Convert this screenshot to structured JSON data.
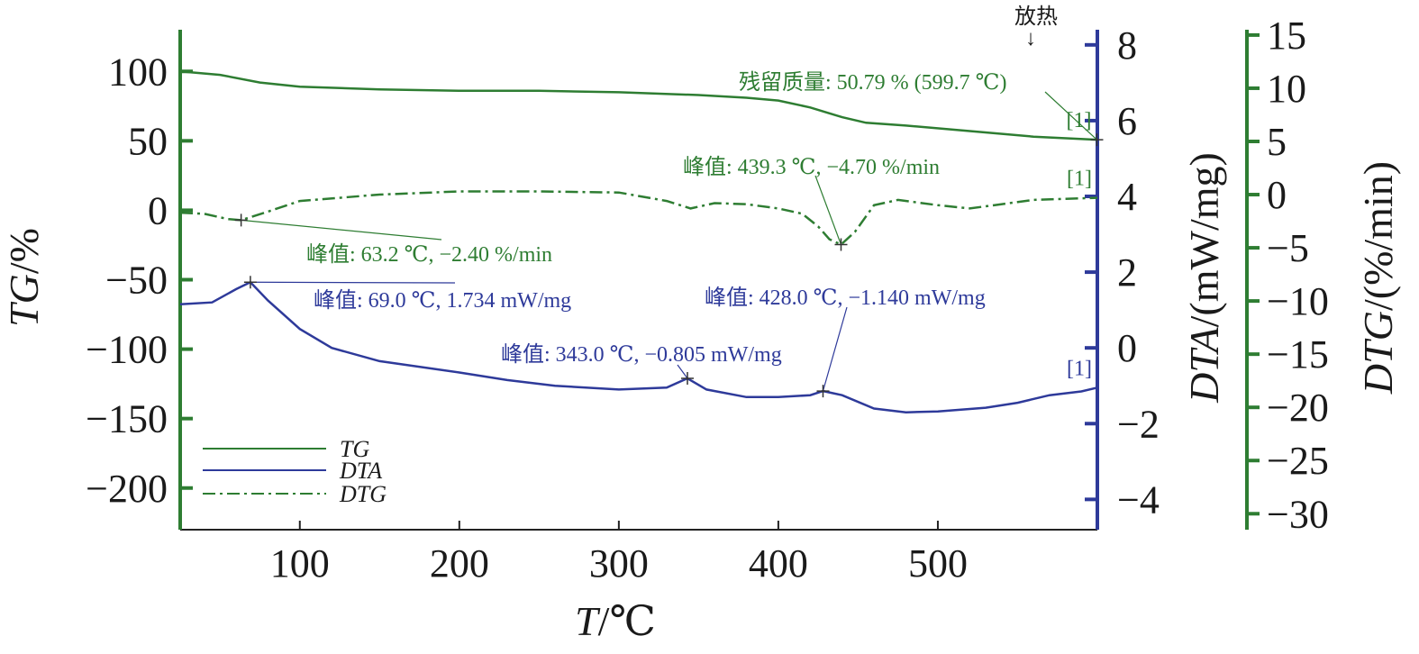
{
  "chart_data": {
    "type": "line",
    "xlabel": "T/℃",
    "x_ticks": [
      100,
      200,
      300,
      400,
      500
    ],
    "xlim": [
      25,
      600
    ],
    "axes": {
      "tg": {
        "label": "TG/%",
        "ylim": [
          -230,
          130
        ],
        "ticks": [
          100,
          50,
          0,
          -50,
          -100,
          -150,
          -200
        ],
        "tick_labels": [
          "100",
          "50",
          "0",
          "−50",
          "−100",
          "−150",
          "−200"
        ]
      },
      "dta": {
        "label": "DTA/(mW/mg)",
        "ylim": [
          -4.8,
          8.4
        ],
        "ticks": [
          8,
          6,
          4,
          2,
          0,
          -2,
          -4
        ],
        "tick_labels": [
          "8",
          "6",
          "4",
          "2",
          "0",
          "−2",
          "−4"
        ]
      },
      "dtg": {
        "label": "DTG/(%/min)",
        "ylim": [
          -31.5,
          15.5
        ],
        "ticks": [
          15,
          10,
          5,
          0,
          -5,
          -10,
          -15,
          -20,
          -25,
          -30
        ],
        "tick_labels": [
          "15",
          "10",
          "5",
          "0",
          "−5",
          "−10",
          "−15",
          "−20",
          "−25",
          "−30"
        ]
      }
    },
    "series": [
      {
        "name": "TG",
        "axis": "tg",
        "color": "#2e7d32",
        "style": "solid",
        "points": [
          [
            25,
            100
          ],
          [
            50,
            97.5
          ],
          [
            75,
            92
          ],
          [
            100,
            89
          ],
          [
            150,
            87
          ],
          [
            200,
            86
          ],
          [
            250,
            86
          ],
          [
            300,
            85
          ],
          [
            350,
            83
          ],
          [
            380,
            81
          ],
          [
            400,
            79
          ],
          [
            420,
            74
          ],
          [
            440,
            67
          ],
          [
            455,
            63
          ],
          [
            480,
            61
          ],
          [
            520,
            57
          ],
          [
            560,
            53
          ],
          [
            599.7,
            50.79
          ]
        ]
      },
      {
        "name": "DTA",
        "axis": "dta",
        "color": "#2e3a9a",
        "style": "solid",
        "points": [
          [
            25,
            1.15
          ],
          [
            45,
            1.2
          ],
          [
            60,
            1.55
          ],
          [
            69,
            1.734
          ],
          [
            80,
            1.25
          ],
          [
            100,
            0.5
          ],
          [
            120,
            0
          ],
          [
            150,
            -0.35
          ],
          [
            200,
            -0.65
          ],
          [
            230,
            -0.85
          ],
          [
            260,
            -1.0
          ],
          [
            300,
            -1.1
          ],
          [
            330,
            -1.05
          ],
          [
            343,
            -0.805
          ],
          [
            355,
            -1.1
          ],
          [
            380,
            -1.3
          ],
          [
            400,
            -1.3
          ],
          [
            420,
            -1.25
          ],
          [
            428,
            -1.14
          ],
          [
            440,
            -1.25
          ],
          [
            460,
            -1.6
          ],
          [
            480,
            -1.7
          ],
          [
            500,
            -1.68
          ],
          [
            530,
            -1.58
          ],
          [
            550,
            -1.45
          ],
          [
            570,
            -1.25
          ],
          [
            590,
            -1.15
          ],
          [
            600,
            -1.05
          ]
        ]
      },
      {
        "name": "DTG",
        "axis": "dtg",
        "color": "#2e7d32",
        "style": "dashdot",
        "points": [
          [
            25,
            -1.7
          ],
          [
            40,
            -1.8
          ],
          [
            55,
            -2.3
          ],
          [
            63.2,
            -2.4
          ],
          [
            80,
            -1.6
          ],
          [
            100,
            -0.6
          ],
          [
            150,
            0
          ],
          [
            200,
            0.3
          ],
          [
            250,
            0.3
          ],
          [
            300,
            0.2
          ],
          [
            330,
            -0.6
          ],
          [
            345,
            -1.3
          ],
          [
            360,
            -0.8
          ],
          [
            380,
            -0.9
          ],
          [
            400,
            -1.3
          ],
          [
            415,
            -1.8
          ],
          [
            425,
            -3.0
          ],
          [
            432,
            -4.2
          ],
          [
            439.3,
            -4.7
          ],
          [
            448,
            -3.5
          ],
          [
            460,
            -1.0
          ],
          [
            475,
            -0.5
          ],
          [
            500,
            -1.0
          ],
          [
            520,
            -1.3
          ],
          [
            560,
            -0.5
          ],
          [
            600,
            -0.3
          ]
        ]
      }
    ],
    "annotations": [
      {
        "text": "残留质量: 50.79 % (599.7 ℃)",
        "series": "TG",
        "x": 599.7,
        "y": 50.79
      },
      {
        "text": "峰值: 439.3 ℃, −4.70 %/min",
        "series": "DTG",
        "x": 439.3,
        "y": -4.7
      },
      {
        "text": "峰值: 63.2 ℃, −2.40 %/min",
        "series": "DTG",
        "x": 63.2,
        "y": -2.4
      },
      {
        "text": "峰值: 69.0 ℃, 1.734 mW/mg",
        "series": "DTA",
        "x": 69.0,
        "y": 1.734
      },
      {
        "text": "峰值: 428.0 ℃, −1.140 mW/mg",
        "series": "DTA",
        "x": 428.0,
        "y": -1.14
      },
      {
        "text": "峰值: 343.0 ℃, −0.805 mW/mg",
        "series": "DTA",
        "x": 343.0,
        "y": -0.805
      }
    ],
    "series_end_label": "[1]",
    "exotherm_label": "放热",
    "exotherm_arrow": "↓",
    "legend": {
      "position": "bottom-left",
      "entries": [
        "TG",
        "DTA",
        "DTG"
      ]
    }
  }
}
